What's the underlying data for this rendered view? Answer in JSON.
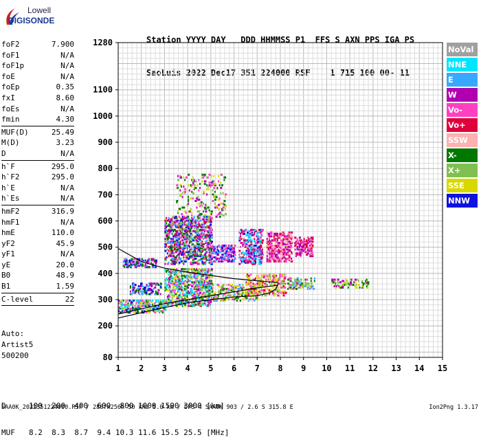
{
  "logo": {
    "line1": "Lowell",
    "line2": "DIGISONDE"
  },
  "header": {
    "line1": "Station YYYY DAY   DDD HHMMSS P1  FFS S AXN PPS IGA PS",
    "line2": "SaoLuis 2022 Dec17 351 224000 RSF    1 715 100 00- 11"
  },
  "params": {
    "group1": [
      {
        "label": "foF2",
        "value": "7.900"
      },
      {
        "label": "foF1",
        "value": "N/A"
      },
      {
        "label": "foF1p",
        "value": "N/A"
      },
      {
        "label": "foE",
        "value": "N/A"
      },
      {
        "label": "foEp",
        "value": "0.35"
      },
      {
        "label": "fxI",
        "value": "8.60"
      },
      {
        "label": "foEs",
        "value": "N/A"
      },
      {
        "label": "fmin",
        "value": "4.30"
      }
    ],
    "group2": [
      {
        "label": "MUF(D)",
        "value": "25.49"
      },
      {
        "label": "M(D)",
        "value": "3.23"
      },
      {
        "label": "D",
        "value": "N/A"
      }
    ],
    "group3": [
      {
        "label": "h`F",
        "value": "295.0"
      },
      {
        "label": "h`F2",
        "value": "295.0"
      },
      {
        "label": "h`E",
        "value": "N/A"
      },
      {
        "label": "h`Es",
        "value": "N/A"
      }
    ],
    "group4": [
      {
        "label": "hmF2",
        "value": "316.9"
      },
      {
        "label": "hmF1",
        "value": "N/A"
      },
      {
        "label": "hmE",
        "value": "110.0"
      },
      {
        "label": "yF2",
        "value": "45.9"
      },
      {
        "label": "yF1",
        "value": "N/A"
      },
      {
        "label": "yE",
        "value": "20.0"
      },
      {
        "label": "B0",
        "value": "48.9"
      },
      {
        "label": "B1",
        "value": "1.59"
      }
    ],
    "group5": [
      {
        "label": "C-level",
        "value": "22"
      }
    ]
  },
  "auto": {
    "line1": "Auto:",
    "line2": "Artist5",
    "line3": "500200"
  },
  "muf_table": {
    "d_label": "D",
    "d_values": "100  200  400  600  800 1000 1500 3000 [km]",
    "muf_label": "MUF",
    "muf_values": "8.2  8.3  8.7  9.4 10.3 11.6 15.5 25.5 [MHz]"
  },
  "footer": {
    "left": "SAA0K_2022351224000.RSF / 280fx256h 50 kHz 5.0 km / DPS-4 SAA0K 903 / 2.6 S 315.8 E",
    "right": "Ion2Png 1.3.17"
  },
  "legend": [
    {
      "label": "NoVal",
      "color": "#a0a0a0"
    },
    {
      "label": "NNE",
      "color": "#00e5ff"
    },
    {
      "label": "E",
      "color": "#38a8ff"
    },
    {
      "label": "W",
      "color": "#b000b0"
    },
    {
      "label": "Vo-",
      "color": "#ff40c0"
    },
    {
      "label": "Vo+",
      "color": "#e0003c"
    },
    {
      "label": "SSW",
      "color": "#ffb0b0"
    },
    {
      "label": "X-",
      "color": "#007800"
    },
    {
      "label": "X+",
      "color": "#80c050"
    },
    {
      "label": "SSE",
      "color": "#d8d800"
    },
    {
      "label": "NNW",
      "color": "#1010e0"
    }
  ],
  "chart_data": {
    "type": "scatter",
    "title": "",
    "xlabel": "",
    "ylabel": "",
    "xlim": [
      1,
      15
    ],
    "ylim": [
      80,
      1280
    ],
    "x_ticks": [
      "1",
      "2",
      "3",
      "4",
      "5",
      "6",
      "7",
      "8",
      "9",
      "10",
      "11",
      "12",
      "13",
      "14",
      "15"
    ],
    "y_ticks": [
      "80",
      "200",
      "300",
      "400",
      "500",
      "600",
      "700",
      "800",
      "900",
      "1000",
      "1100",
      "1280"
    ],
    "y_tick_values": [
      80,
      200,
      300,
      400,
      500,
      600,
      700,
      800,
      900,
      1000,
      1100,
      1280
    ],
    "grid": true,
    "legend_position": "right",
    "profile_curve": {
      "x": [
        1.0,
        2.0,
        3.0,
        4.0,
        5.0,
        6.0,
        7.0,
        7.5,
        7.8,
        7.9
      ],
      "y": [
        230,
        250,
        270,
        288,
        300,
        310,
        315,
        325,
        340,
        360
      ]
    },
    "trace_lower": {
      "x": [
        1.0,
        2.0,
        3.0,
        4.0,
        5.0,
        6.0,
        7.0,
        7.9
      ],
      "y": [
        245,
        265,
        285,
        300,
        315,
        330,
        345,
        355
      ]
    },
    "trace_upper": {
      "x": [
        1.0,
        1.5,
        2.0,
        3.0,
        4.0,
        5.0,
        6.0,
        7.0,
        7.9
      ],
      "y": [
        495,
        470,
        445,
        420,
        405,
        392,
        380,
        372,
        365
      ]
    },
    "echo_regions": [
      {
        "x": [
          1.2,
          2.6
        ],
        "y": [
          428,
          462
        ],
        "colors": [
          "W",
          "Vo-",
          "NNW",
          "X-",
          "E"
        ],
        "density": 0.5
      },
      {
        "x": [
          3.0,
          5.0
        ],
        "y": [
          440,
          620
        ],
        "colors": [
          "W",
          "Vo-",
          "Vo+",
          "NNW",
          "X-",
          "X+",
          "E"
        ],
        "density": 0.45
      },
      {
        "x": [
          3.5,
          5.6
        ],
        "y": [
          620,
          780
        ],
        "colors": [
          "W",
          "Vo-",
          "X-",
          "X+",
          "SSE"
        ],
        "density": 0.12
      },
      {
        "x": [
          5.0,
          6.0
        ],
        "y": [
          450,
          510
        ],
        "colors": [
          "W",
          "Vo-",
          "NNW",
          "E"
        ],
        "density": 0.4
      },
      {
        "x": [
          6.2,
          7.2
        ],
        "y": [
          440,
          570
        ],
        "colors": [
          "W",
          "Vo-",
          "Vo+",
          "NNW",
          "E",
          "NNE"
        ],
        "density": 0.4
      },
      {
        "x": [
          7.4,
          8.5
        ],
        "y": [
          450,
          560
        ],
        "colors": [
          "W",
          "Vo-",
          "Vo+",
          "SSW"
        ],
        "density": 0.55
      },
      {
        "x": [
          8.6,
          9.4
        ],
        "y": [
          470,
          540
        ],
        "colors": [
          "W",
          "Vo-",
          "Vo+"
        ],
        "density": 0.45
      },
      {
        "x": [
          1.0,
          3.0
        ],
        "y": [
          255,
          300
        ],
        "colors": [
          "NNW",
          "X-",
          "X+",
          "E",
          "SSE",
          "NNE",
          "Vo-"
        ],
        "density": 0.45
      },
      {
        "x": [
          1.5,
          2.8
        ],
        "y": [
          325,
          365
        ],
        "colors": [
          "NNW",
          "E",
          "X-",
          "W"
        ],
        "density": 0.35
      },
      {
        "x": [
          3.0,
          5.0
        ],
        "y": [
          280,
          420
        ],
        "colors": [
          "NNE",
          "E",
          "X-",
          "X+",
          "Vo-",
          "W",
          "SSE"
        ],
        "density": 0.45
      },
      {
        "x": [
          5.0,
          7.0
        ],
        "y": [
          300,
          360
        ],
        "colors": [
          "X-",
          "X+",
          "SSE",
          "Vo-",
          "E",
          "SSW"
        ],
        "density": 0.35
      },
      {
        "x": [
          6.5,
          8.2
        ],
        "y": [
          320,
          400
        ],
        "colors": [
          "SSW",
          "Vo-",
          "Vo+",
          "X+",
          "SSE"
        ],
        "density": 0.4
      },
      {
        "x": [
          8.3,
          9.5
        ],
        "y": [
          345,
          385
        ],
        "colors": [
          "X-",
          "X+",
          "SSE",
          "Vo-",
          "E"
        ],
        "density": 0.3
      },
      {
        "x": [
          10.2,
          11.8
        ],
        "y": [
          350,
          380
        ],
        "colors": [
          "X-",
          "X+",
          "SSE",
          "W"
        ],
        "density": 0.25
      }
    ]
  }
}
